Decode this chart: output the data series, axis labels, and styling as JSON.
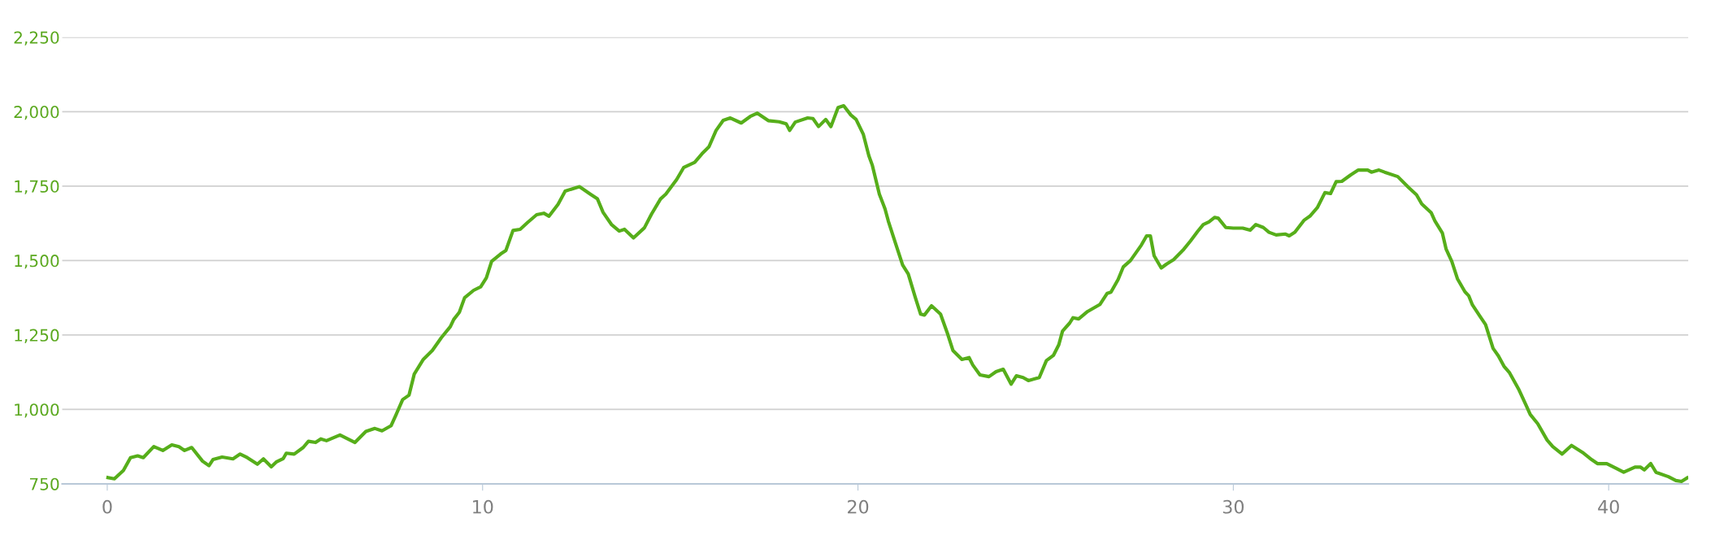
{
  "chart_data": {
    "type": "line",
    "xlim": [
      -1.2,
      42.12
    ],
    "ylim": [
      750,
      2250
    ],
    "xticks": [
      0,
      10,
      20,
      30,
      40
    ],
    "yticks": [
      750,
      {
        "value": 1000,
        "label": "1,000"
      },
      {
        "value": 1250,
        "label": "1,250"
      },
      {
        "value": 1500,
        "label": "1,500"
      },
      {
        "value": 1750,
        "label": "1,750"
      },
      {
        "value": 2000,
        "label": "2,000"
      },
      {
        "value": 2250,
        "label": "2,250"
      }
    ],
    "grid": "y",
    "marker": "none",
    "line_style": "solid",
    "series": [
      {
        "color": "#56ae1a",
        "x": [
          0.02,
          0.19,
          0.43,
          0.62,
          0.81,
          0.96,
          1.24,
          1.48,
          1.72,
          1.91,
          2.06,
          2.25,
          2.54,
          2.71,
          2.82,
          3.06,
          3.35,
          3.54,
          3.73,
          4.0,
          4.16,
          4.37,
          4.5,
          4.69,
          4.77,
          4.98,
          5.22,
          5.36,
          5.55,
          5.69,
          5.84,
          6.2,
          6.6,
          6.89,
          7.13,
          7.32,
          7.56,
          7.7,
          7.87,
          8.04,
          8.18,
          8.42,
          8.66,
          8.9,
          9.14,
          9.23,
          9.38,
          9.52,
          9.76,
          9.95,
          10.1,
          10.24,
          10.48,
          10.62,
          10.81,
          11.0,
          11.2,
          11.44,
          11.63,
          11.77,
          12.01,
          12.2,
          12.34,
          12.58,
          12.87,
          13.06,
          13.21,
          13.44,
          13.64,
          13.78,
          14.02,
          14.31,
          14.5,
          14.74,
          14.88,
          15.17,
          15.36,
          15.65,
          15.84,
          16.03,
          16.22,
          16.41,
          16.6,
          16.89,
          17.13,
          17.32,
          17.61,
          17.9,
          18.09,
          18.18,
          18.33,
          18.66,
          18.8,
          18.95,
          19.14,
          19.28,
          19.47,
          19.62,
          19.81,
          19.95,
          20.14,
          20.29,
          20.38,
          20.57,
          20.72,
          20.81,
          21.0,
          21.19,
          21.34,
          21.53,
          21.67,
          21.77,
          21.96,
          22.2,
          22.39,
          22.53,
          22.77,
          22.96,
          23.06,
          23.25,
          23.49,
          23.68,
          23.87,
          24.08,
          24.22,
          24.4,
          24.54,
          24.83,
          25.02,
          25.21,
          25.35,
          25.45,
          25.64,
          25.73,
          25.88,
          26.12,
          26.45,
          26.64,
          26.74,
          26.93,
          27.07,
          27.26,
          27.55,
          27.69,
          27.79,
          27.89,
          28.08,
          28.22,
          28.41,
          28.66,
          28.86,
          29.05,
          29.2,
          29.35,
          29.5,
          29.6,
          29.8,
          30.0,
          30.25,
          30.45,
          30.6,
          30.8,
          30.95,
          31.14,
          31.39,
          31.49,
          31.64,
          31.89,
          32.04,
          32.24,
          32.44,
          32.59,
          32.74,
          32.89,
          33.13,
          33.33,
          33.58,
          33.68,
          33.88,
          34.03,
          34.38,
          34.68,
          34.88,
          35.02,
          35.27,
          35.37,
          35.57,
          35.67,
          35.82,
          35.97,
          36.17,
          36.27,
          36.37,
          36.57,
          36.72,
          36.92,
          37.06,
          37.21,
          37.36,
          37.61,
          37.81,
          37.91,
          38.11,
          38.36,
          38.51,
          38.76,
          39.01,
          39.3,
          39.55,
          39.7,
          39.95,
          40.2,
          40.4,
          40.7,
          40.85,
          40.95,
          41.12,
          41.26,
          41.59,
          41.79,
          41.94,
          42.09
        ],
        "values": [
          771,
          767,
          795,
          838,
          844,
          838,
          875,
          862,
          881,
          875,
          862,
          872,
          826,
          811,
          832,
          840,
          834,
          850,
          838,
          816,
          834,
          807,
          823,
          835,
          853,
          850,
          872,
          893,
          889,
          901,
          895,
          914,
          889,
          926,
          936,
          928,
          945,
          984,
          1033,
          1048,
          1119,
          1168,
          1198,
          1241,
          1278,
          1302,
          1326,
          1375,
          1400,
          1412,
          1442,
          1497,
          1522,
          1534,
          1601,
          1605,
          1628,
          1654,
          1659,
          1649,
          1689,
          1733,
          1739,
          1748,
          1723,
          1707,
          1662,
          1620,
          1599,
          1605,
          1576,
          1610,
          1656,
          1707,
          1723,
          1772,
          1813,
          1830,
          1858,
          1882,
          1937,
          1971,
          1979,
          1962,
          1984,
          1995,
          1970,
          1966,
          1959,
          1937,
          1965,
          1979,
          1977,
          1950,
          1974,
          1950,
          2014,
          2020,
          1989,
          1974,
          1925,
          1852,
          1821,
          1723,
          1674,
          1632,
          1558,
          1485,
          1455,
          1375,
          1320,
          1317,
          1348,
          1320,
          1253,
          1198,
          1168,
          1174,
          1149,
          1116,
          1110,
          1127,
          1135,
          1085,
          1113,
          1107,
          1097,
          1107,
          1164,
          1182,
          1217,
          1263,
          1290,
          1308,
          1304,
          1329,
          1353,
          1390,
          1394,
          1436,
          1479,
          1500,
          1552,
          1583,
          1583,
          1516,
          1475,
          1488,
          1503,
          1535,
          1566,
          1598,
          1621,
          1630,
          1645,
          1642,
          1611,
          1609,
          1609,
          1602,
          1621,
          1611,
          1595,
          1586,
          1589,
          1583,
          1595,
          1636,
          1649,
          1678,
          1728,
          1725,
          1765,
          1766,
          1788,
          1804,
          1804,
          1797,
          1804,
          1797,
          1782,
          1744,
          1721,
          1690,
          1661,
          1633,
          1592,
          1538,
          1497,
          1439,
          1395,
          1382,
          1351,
          1313,
          1285,
          1205,
          1180,
          1145,
          1123,
          1066,
          1011,
          983,
          952,
          897,
          875,
          850,
          879,
          856,
          831,
          818,
          818,
          802,
          789,
          806,
          806,
          797,
          818,
          789,
          774,
          761,
          758,
          770
        ]
      }
    ]
  }
}
